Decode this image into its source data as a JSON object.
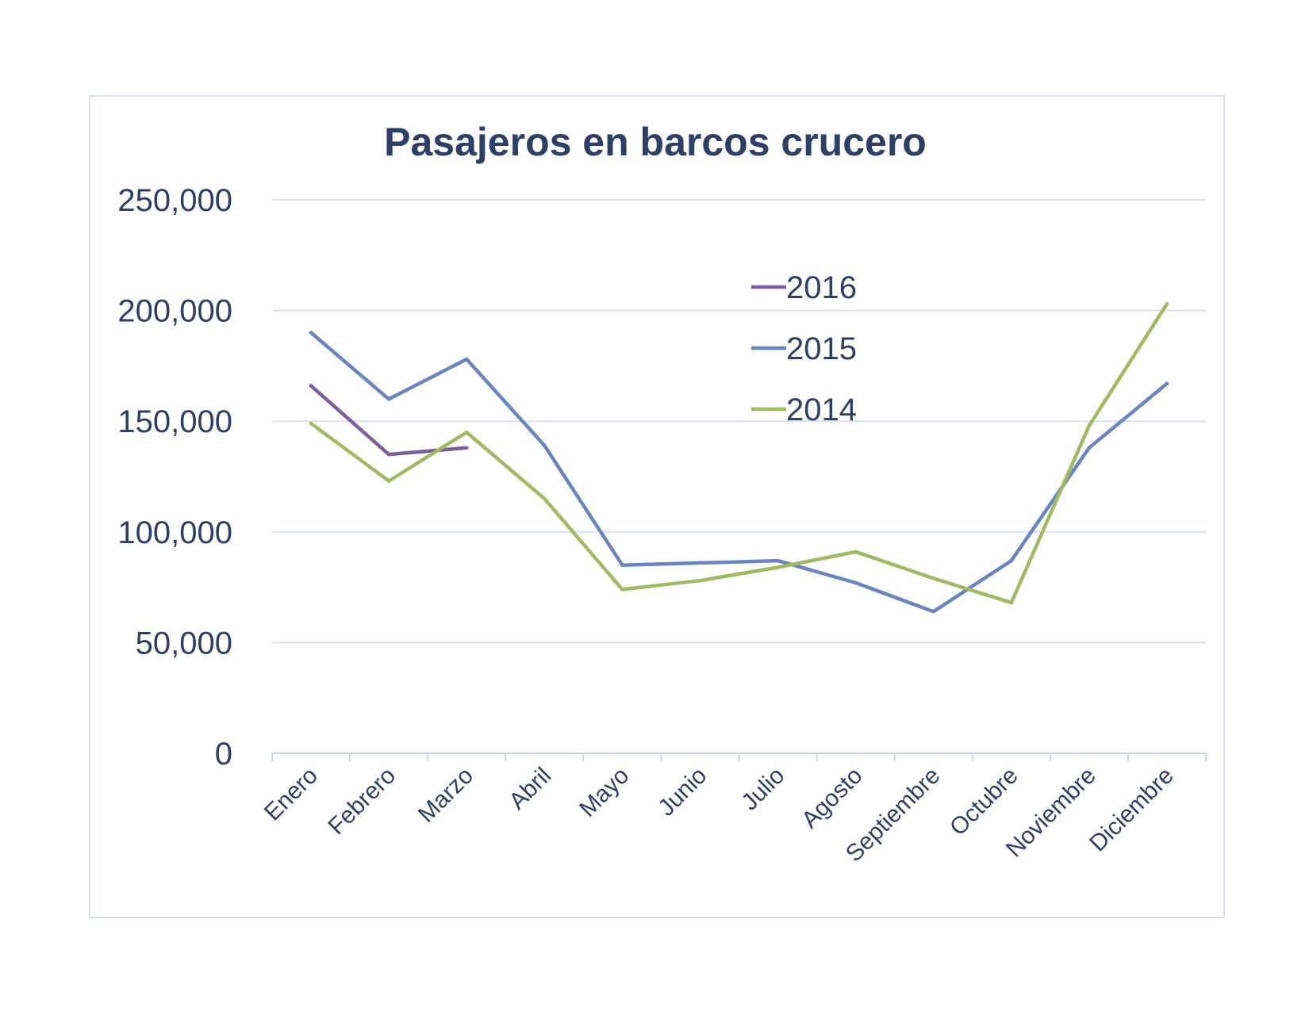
{
  "colors": {
    "text": "#2e3f66",
    "frame": "#d6e2ef",
    "grid": "#d6e2ef",
    "axis": "#c8d6e8"
  },
  "chart_data": {
    "type": "line",
    "title": "Pasajeros en barcos crucero",
    "xlabel": "",
    "ylabel": "",
    "ylim": [
      0,
      250000
    ],
    "yticks": [
      0,
      50000,
      100000,
      150000,
      200000,
      250000
    ],
    "ytick_labels": [
      "0",
      "50,000",
      "100,000",
      "150,000",
      "200,000",
      "250,000"
    ],
    "grid": true,
    "legend_position": "upper-right",
    "categories": [
      "Enero",
      "Febrero",
      "Marzo",
      "Abril",
      "Mayo",
      "Junio",
      "Julio",
      "Agosto",
      "Septiembre",
      "Octubre",
      "Noviembre",
      "Diciembre"
    ],
    "series": [
      {
        "name": "2016",
        "color": "#7b5f9a",
        "values": [
          166000,
          135000,
          138000,
          null,
          null,
          null,
          null,
          null,
          null,
          null,
          null,
          null
        ]
      },
      {
        "name": "2015",
        "color": "#6a85bd",
        "values": [
          190000,
          160000,
          178000,
          139000,
          85000,
          86000,
          87000,
          77000,
          64000,
          87000,
          138000,
          167000
        ]
      },
      {
        "name": "2014",
        "color": "#9fba62",
        "values": [
          149000,
          123000,
          145000,
          115000,
          74000,
          78000,
          84000,
          91000,
          79000,
          68000,
          148000,
          203000
        ]
      }
    ]
  }
}
